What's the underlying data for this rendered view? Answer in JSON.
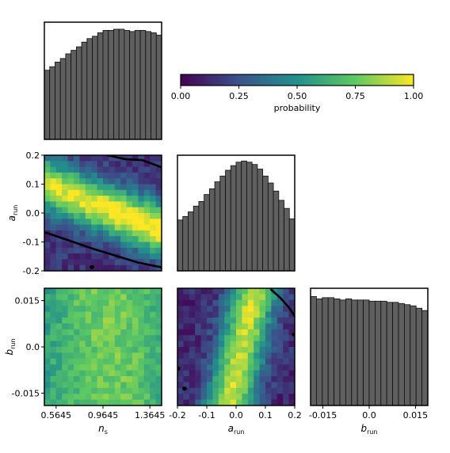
{
  "colormap": {
    "name": "viridis",
    "stops": [
      "#440154",
      "#3b528b",
      "#21918c",
      "#5ec962",
      "#fde725"
    ],
    "ticks": [
      "0.00",
      "0.25",
      "0.50",
      "0.75",
      "1.00"
    ],
    "tick_values": [
      0.0,
      0.25,
      0.5,
      0.75,
      1.0
    ],
    "label": "probability"
  },
  "chart_data": [
    {
      "id": "hist-ns",
      "type": "bar",
      "title": "",
      "xlabel": "",
      "ylabel": "",
      "grid": false,
      "xlim": [
        0.4645,
        1.4645
      ],
      "values": [
        0.59,
        0.62,
        0.66,
        0.69,
        0.73,
        0.76,
        0.79,
        0.83,
        0.86,
        0.88,
        0.91,
        0.93,
        0.93,
        0.94,
        0.94,
        0.93,
        0.92,
        0.93,
        0.93,
        0.92,
        0.91,
        0.89
      ]
    },
    {
      "id": "hist-arun",
      "type": "bar",
      "title": "",
      "xlabel": "",
      "ylabel": "",
      "grid": false,
      "xlim": [
        -0.2,
        0.2
      ],
      "values": [
        0.44,
        0.47,
        0.51,
        0.56,
        0.6,
        0.66,
        0.71,
        0.77,
        0.82,
        0.87,
        0.91,
        0.94,
        0.95,
        0.94,
        0.92,
        0.88,
        0.82,
        0.76,
        0.69,
        0.61,
        0.54,
        0.45
      ]
    },
    {
      "id": "hist-brun",
      "type": "bar",
      "title": "",
      "xlabel": "",
      "ylabel": "",
      "grid": false,
      "xlim": [
        -0.019,
        0.019
      ],
      "values": [
        0.93,
        0.91,
        0.92,
        0.92,
        0.91,
        0.9,
        0.91,
        0.9,
        0.9,
        0.9,
        0.89,
        0.89,
        0.89,
        0.88,
        0.88,
        0.87,
        0.86,
        0.85,
        0.83,
        0.81
      ]
    },
    {
      "id": "heat-ns-arun",
      "type": "heatmap",
      "title": "",
      "xlabel": "",
      "ylabel": "$a_\\mathrm{run}$",
      "grid": false,
      "xlim": [
        0.4645,
        1.4645
      ],
      "ylim": [
        -0.2,
        0.2
      ],
      "xticks": [],
      "yticks": [
        "0.2",
        "0.1",
        "0.0",
        "-0.1",
        "-0.2"
      ],
      "ytick_values": [
        0.2,
        0.1,
        0.0,
        -0.1,
        -0.2
      ],
      "ridge": {
        "x0": 0.4645,
        "y0": 0.1,
        "slope": -0.16
      },
      "width": 0.085,
      "floor": 0.15,
      "peak_x": 1.2,
      "contours": [
        {
          "x": [
            0.4645,
            0.66,
            0.86,
            1.06,
            1.26,
            1.4645
          ],
          "y": [
            -0.066,
            -0.093,
            -0.121,
            -0.146,
            -0.171,
            -0.188
          ]
        },
        {
          "x": [
            1.0,
            1.16,
            1.3,
            1.4645
          ],
          "y": [
            0.2,
            0.186,
            0.183,
            0.158
          ]
        }
      ],
      "blobs": [
        {
          "x": 0.87,
          "y": -0.187
        }
      ]
    },
    {
      "id": "heat-ns-brun",
      "type": "heatmap",
      "title": "",
      "xlabel": "$n_s$",
      "ylabel": "$b_\\mathrm{run}$",
      "grid": false,
      "xlim": [
        0.4645,
        1.4645
      ],
      "ylim": [
        -0.019,
        0.019
      ],
      "xticks": [
        "0.5645",
        "0.9645",
        "1.3645"
      ],
      "xtick_values": [
        0.5645,
        0.9645,
        1.3645
      ],
      "yticks": [
        "0.015",
        "0.0",
        "-0.015"
      ],
      "ytick_values": [
        0.015,
        0.0,
        -0.015
      ]
    },
    {
      "id": "heat-arun-brun",
      "type": "heatmap",
      "title": "",
      "xlabel": "$a_\\mathrm{run}$",
      "ylabel": "",
      "grid": false,
      "xlim": [
        -0.2,
        0.2
      ],
      "ylim": [
        -0.019,
        0.019
      ],
      "xticks": [
        "-0.2",
        "-0.1",
        "0.0",
        "0.1",
        "0.2"
      ],
      "xtick_values": [
        -0.2,
        -0.1,
        0.0,
        0.1,
        0.2
      ],
      "yticks": [],
      "ridge": {
        "x0": 0.02,
        "y0": 0.0,
        "slope": 0.09
      },
      "width": 0.075,
      "floor": 0.12,
      "contours": [
        {
          "x": [
            0.12,
            0.15,
            0.18,
            0.2
          ],
          "y": [
            0.0185,
            0.016,
            0.0128,
            0.01
          ]
        }
      ],
      "blobs": [
        {
          "x": -0.176,
          "y": -0.0135
        },
        {
          "x": 0.198,
          "y": 0.004
        },
        {
          "x": -0.198,
          "y": -0.007
        }
      ]
    }
  ],
  "bottom_right": {
    "xlabel": "$b_\\mathrm{run}$",
    "xticks": [
      "-0.015",
      "0.0",
      "0.015"
    ],
    "xtick_values": [
      -0.015,
      0.0,
      0.015
    ]
  }
}
